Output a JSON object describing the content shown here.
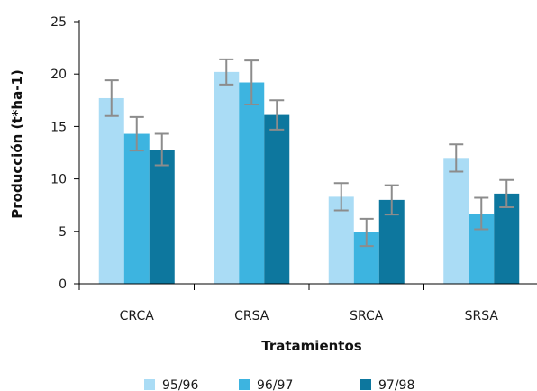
{
  "chart_data": {
    "type": "bar",
    "title": "",
    "xlabel": "Tratamientos",
    "ylabel": "Producción (t*ha-1)",
    "ylim": [
      0,
      25
    ],
    "yticks": [
      0,
      5,
      10,
      15,
      20,
      25
    ],
    "grid": false,
    "legend_position": "bottom",
    "categories": [
      "CRCA",
      "CRSA",
      "SRCA",
      "SRSA"
    ],
    "series": [
      {
        "name": "95/96",
        "color": "#aadcf5",
        "values": [
          17.7,
          20.2,
          8.3,
          12.0
        ],
        "error": [
          1.7,
          1.2,
          1.3,
          1.3
        ]
      },
      {
        "name": "96/97",
        "color": "#3db4e0",
        "values": [
          14.3,
          19.2,
          4.9,
          6.7
        ],
        "error": [
          1.6,
          2.1,
          1.3,
          1.5
        ]
      },
      {
        "name": "97/98",
        "color": "#0d779e",
        "values": [
          12.8,
          16.1,
          8.0,
          8.6
        ],
        "error": [
          1.5,
          1.4,
          1.4,
          1.3
        ]
      }
    ]
  }
}
